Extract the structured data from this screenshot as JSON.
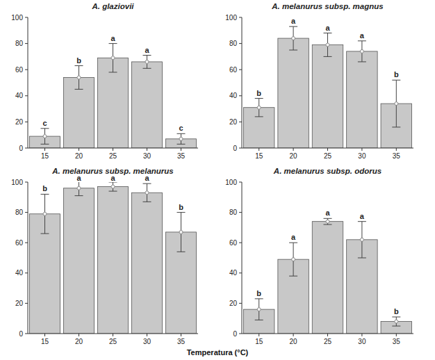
{
  "chart_data": [
    {
      "type": "bar",
      "title": "A. glaziovii",
      "categories": [
        "15",
        "20",
        "25",
        "30",
        "35"
      ],
      "values": [
        9,
        54,
        69,
        66,
        7
      ],
      "errors": [
        6,
        9,
        11,
        5,
        4
      ],
      "annotations": [
        "c",
        "b",
        "a",
        "a",
        "c"
      ],
      "color": "#c8c8c8",
      "ylim": [
        0,
        100
      ],
      "yticks": [
        0,
        20,
        40,
        60,
        80,
        100
      ],
      "grid": false
    },
    {
      "type": "bar",
      "title": "A. melanurus subsp. magnus",
      "categories": [
        "15",
        "20",
        "25",
        "30",
        "35"
      ],
      "values": [
        31,
        84,
        79,
        74,
        34
      ],
      "errors": [
        7,
        9,
        9,
        8,
        18
      ],
      "annotations": [
        "b",
        "a",
        "a",
        "a",
        "b"
      ],
      "color": "#c8c8c8",
      "ylim": [
        0,
        100
      ],
      "yticks": [
        0,
        20,
        40,
        60,
        80,
        100
      ],
      "grid": false
    },
    {
      "type": "bar",
      "title": "A. melanurus subsp. melanurus",
      "categories": [
        "15",
        "20",
        "25",
        "30",
        "35"
      ],
      "values": [
        79,
        96,
        97,
        93,
        67
      ],
      "errors": [
        13,
        5,
        3,
        6,
        13
      ],
      "annotations": [
        "b",
        "a",
        "a",
        "a",
        "b"
      ],
      "color": "#c8c8c8",
      "ylim": [
        0,
        100
      ],
      "yticks": [
        0,
        20,
        40,
        60,
        80,
        100
      ],
      "grid": false
    },
    {
      "type": "bar",
      "title": "A. melanurus subsp. odorus",
      "categories": [
        "15",
        "20",
        "25",
        "30",
        "35"
      ],
      "values": [
        16,
        49,
        74,
        62,
        8
      ],
      "errors": [
        7,
        11,
        2,
        12,
        3
      ],
      "annotations": [
        "b",
        "a",
        "a",
        "a",
        "b"
      ],
      "color": "#c8c8c8",
      "ylim": [
        0,
        100
      ],
      "yticks": [
        0,
        20,
        40,
        60,
        80,
        100
      ],
      "grid": false
    }
  ],
  "xlabel": "Temperatura (°C)"
}
